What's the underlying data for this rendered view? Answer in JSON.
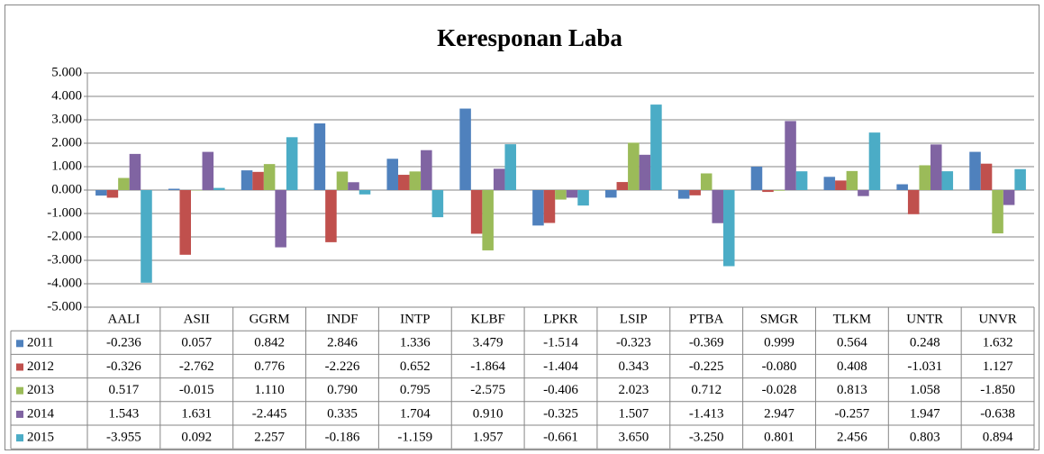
{
  "chart_data": {
    "type": "bar",
    "title": "Keresponan Laba",
    "categories": [
      "AALI",
      "ASII",
      "GGRM",
      "INDF",
      "INTP",
      "KLBF",
      "LPKR",
      "LSIP",
      "PTBA",
      "SMGR",
      "TLKM",
      "UNTR",
      "UNVR"
    ],
    "series": [
      {
        "name": "2011",
        "color": "#4f81bd",
        "values": [
          -0.236,
          0.057,
          0.842,
          2.846,
          1.336,
          3.479,
          -1.514,
          -0.323,
          -0.369,
          0.999,
          0.564,
          0.248,
          1.632
        ],
        "value_labels": [
          "-0.236",
          "0.057",
          "0.842",
          "2.846",
          "1.336",
          "3.479",
          "-1.514",
          "-0.323",
          "-0.369",
          "0.999",
          "0.564",
          "0.248",
          "1.632"
        ]
      },
      {
        "name": "2012",
        "color": "#c0504d",
        "values": [
          -0.326,
          -2.762,
          0.776,
          -2.226,
          0.652,
          -1.864,
          -1.404,
          0.343,
          -0.225,
          -0.08,
          0.408,
          -1.031,
          1.127
        ],
        "value_labels": [
          "-0.326",
          "-2.762",
          "0.776",
          "-2.226",
          "0.652",
          "-1.864",
          "-1.404",
          "0.343",
          "-0.225",
          "-0.080",
          "0.408",
          "-1.031",
          "1.127"
        ]
      },
      {
        "name": "2013",
        "color": "#9bbb59",
        "values": [
          0.517,
          -0.015,
          1.11,
          0.79,
          0.795,
          -2.575,
          -0.406,
          2.023,
          0.712,
          -0.028,
          0.813,
          1.058,
          -1.85
        ],
        "value_labels": [
          "0.517",
          "-0.015",
          "1.110",
          "0.790",
          "0.795",
          "-2.575",
          "-0.406",
          "2.023",
          "0.712",
          "-0.028",
          "0.813",
          "1.058",
          "-1.850"
        ]
      },
      {
        "name": "2014",
        "color": "#8064a2",
        "values": [
          1.543,
          1.631,
          -2.445,
          0.335,
          1.704,
          0.91,
          -0.325,
          1.507,
          -1.413,
          2.947,
          -0.257,
          1.947,
          -0.638
        ],
        "value_labels": [
          "1.543",
          "1.631",
          "-2.445",
          "0.335",
          "1.704",
          "0.910",
          "-0.325",
          "1.507",
          "-1.413",
          "2.947",
          "-0.257",
          "1.947",
          "-0.638"
        ]
      },
      {
        "name": "2015",
        "color": "#4bacc6",
        "values": [
          -3.955,
          0.092,
          2.257,
          -0.186,
          -1.159,
          1.957,
          -0.661,
          3.65,
          -3.25,
          0.801,
          2.456,
          0.803,
          0.894
        ],
        "value_labels": [
          "-3.955",
          "0.092",
          "2.257",
          "-0.186",
          "-1.159",
          "1.957",
          "-0.661",
          "3.650",
          "-3.250",
          "0.801",
          "2.456",
          "0.803",
          "0.894"
        ]
      }
    ],
    "ylim": [
      -5,
      5
    ],
    "yticks": [
      {
        "value": -5,
        "label": "-5.000"
      },
      {
        "value": -4,
        "label": "-4.000"
      },
      {
        "value": -3,
        "label": "-3.000"
      },
      {
        "value": -2,
        "label": "-2.000"
      },
      {
        "value": -1,
        "label": "-1.000"
      },
      {
        "value": 0,
        "label": "0.000"
      },
      {
        "value": 1,
        "label": "1.000"
      },
      {
        "value": 2,
        "label": "2.000"
      },
      {
        "value": 3,
        "label": "3.000"
      },
      {
        "value": 4,
        "label": "4.000"
      },
      {
        "value": 5,
        "label": "5.000"
      }
    ],
    "grid": true
  }
}
